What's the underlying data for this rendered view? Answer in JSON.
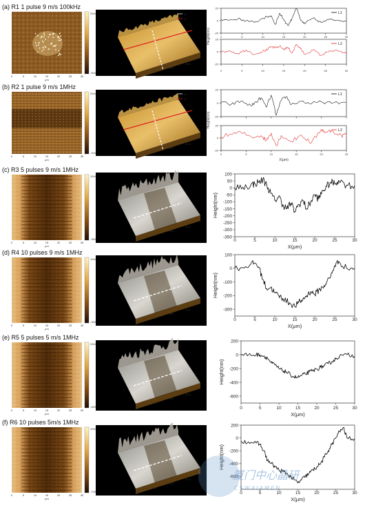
{
  "rows": [
    {
      "label": "(a)  R1  1 pulse  9 m/s 100kHz",
      "colorbar_top": "20nm",
      "colorbar_bottom": "-50nm",
      "map_style": "spotty",
      "sub_x_label": "μm"
    },
    {
      "label": "(b)  R2  1 pulse  9 m/s 1MHz",
      "colorbar_top": "20nm",
      "colorbar_bottom": "-20nm",
      "map_style": "banded",
      "sub_x_label": "μm"
    },
    {
      "label": "(c)  R3  5 pulses  9 m/s 1MHz",
      "colorbar_top": "100nm",
      "colorbar_bottom": "-350nm",
      "map_style": "track",
      "sub_x_label": "μm"
    },
    {
      "label": "(d)  R4  10 pulses  9 m/s 1MHz",
      "colorbar_top": "100nm",
      "colorbar_bottom": "-300nm",
      "map_style": "track",
      "sub_x_label": "μm"
    },
    {
      "label": "(e)  R5  5 pulses  5 m/s 1MHz",
      "colorbar_top": "200nm",
      "colorbar_bottom": "-600nm",
      "map_style": "track",
      "sub_x_label": "μm"
    },
    {
      "label": "(f)  R6  10 pulses  5m/s 1MHz",
      "colorbar_top": "200nm",
      "colorbar_bottom": "-700nm",
      "map_style": "track",
      "sub_x_label": "μm"
    }
  ],
  "map_ticks": [
    "0",
    "5",
    "10",
    "15",
    "20",
    "25",
    "30"
  ],
  "chart_data": [
    {
      "type": "line",
      "panel": "a",
      "xlabel": "",
      "ylabel": "Height(nm)",
      "xlim": [
        0,
        30
      ],
      "xticks": [
        0,
        5,
        10,
        15,
        20,
        25,
        30
      ],
      "series": [
        {
          "name": "L1",
          "color": "#000000",
          "ylim": [
            -20,
            20
          ],
          "yticks": [
            -20,
            0,
            20
          ],
          "line_rough": 4,
          "x": [
            0,
            2,
            4,
            6,
            8,
            10,
            11,
            12,
            13,
            14,
            15,
            16,
            17,
            18,
            19,
            20,
            22,
            24,
            26,
            28,
            30
          ],
          "y": [
            2,
            1,
            3,
            0,
            -3,
            4,
            6,
            8,
            -6,
            12,
            2,
            -8,
            4,
            22,
            1,
            -5,
            4,
            -3,
            2,
            1,
            0
          ]
        },
        {
          "name": "L2",
          "color": "#e02020",
          "ylim": [
            -20,
            20
          ],
          "yticks": [
            -20,
            0,
            20
          ],
          "line_rough": 4,
          "x": [
            0,
            2,
            4,
            6,
            8,
            10,
            11,
            12,
            13,
            14,
            15,
            16,
            17,
            18,
            19,
            20,
            22,
            24,
            26,
            28,
            30
          ],
          "y": [
            -1,
            2,
            -3,
            3,
            -4,
            1,
            3,
            8,
            6,
            9,
            4,
            7,
            -2,
            12,
            5,
            -4,
            3,
            -6,
            2,
            1,
            -2
          ]
        }
      ]
    },
    {
      "type": "line",
      "panel": "b",
      "xlabel": "X(μm)",
      "ylabel": "Height(nm)",
      "xlim": [
        0,
        25
      ],
      "xticks": [
        0,
        5,
        10,
        15,
        20,
        25
      ],
      "series": [
        {
          "name": "L1",
          "color": "#000000",
          "ylim": [
            -20,
            20
          ],
          "yticks": [
            -20,
            0,
            20
          ],
          "line_rough": 5,
          "x": [
            0,
            2,
            4,
            6,
            7,
            8,
            9,
            10,
            11,
            12,
            13,
            14,
            16,
            18,
            20,
            22,
            25
          ],
          "y": [
            1,
            -2,
            3,
            -4,
            2,
            8,
            -6,
            12,
            -18,
            4,
            10,
            -2,
            3,
            -1,
            2,
            0,
            1
          ]
        },
        {
          "name": "L2",
          "color": "#e02020",
          "ylim": [
            -20,
            20
          ],
          "yticks": [
            -20,
            0,
            20
          ],
          "line_rough": 7,
          "x": [
            0,
            2,
            4,
            6,
            8,
            9,
            10,
            11,
            12,
            14,
            16,
            18,
            20,
            21,
            22,
            24,
            25
          ],
          "y": [
            2,
            6,
            9,
            2,
            4,
            -4,
            8,
            -12,
            4,
            -6,
            5,
            -8,
            14,
            9,
            12,
            4,
            6
          ]
        }
      ]
    },
    {
      "type": "line",
      "panel": "c",
      "xlabel": "X(μm)",
      "ylabel": "Height(nm)",
      "xlim": [
        0,
        30
      ],
      "ylim": [
        -350,
        100
      ],
      "xticks": [
        0,
        5,
        10,
        15,
        20,
        25,
        30
      ],
      "yticks": [
        100,
        50,
        0,
        -50,
        -100,
        -150,
        -200,
        -250,
        -300,
        -350
      ],
      "series": [
        {
          "name": "",
          "color": "#000000",
          "line_rough": 55,
          "x": [
            0,
            2,
            4,
            5,
            6,
            7,
            8,
            9,
            10,
            11,
            12,
            13,
            14,
            15,
            16,
            17,
            18,
            19,
            20,
            21,
            22,
            23,
            24,
            25,
            26,
            28,
            30
          ],
          "y": [
            0,
            5,
            20,
            30,
            40,
            60,
            20,
            -40,
            -90,
            -60,
            -120,
            -150,
            -110,
            -170,
            -120,
            -90,
            -150,
            -100,
            -50,
            -80,
            -20,
            10,
            40,
            30,
            55,
            20,
            15
          ]
        }
      ]
    },
    {
      "type": "line",
      "panel": "d",
      "xlabel": "X(μm)",
      "ylabel": "Height(nm)",
      "xlim": [
        0,
        30
      ],
      "ylim": [
        -350,
        100
      ],
      "xticks": [
        0,
        5,
        10,
        15,
        20,
        25,
        30
      ],
      "yticks": [
        100,
        0,
        -100,
        -200,
        -300
      ],
      "series": [
        {
          "name": "",
          "color": "#000000",
          "line_rough": 45,
          "x": [
            0,
            2,
            4,
            5,
            6,
            7,
            8,
            9,
            10,
            11,
            12,
            13,
            14,
            15,
            16,
            17,
            18,
            19,
            20,
            21,
            22,
            23,
            24,
            25,
            26,
            28,
            30
          ],
          "y": [
            0,
            5,
            30,
            40,
            10,
            -80,
            -150,
            -140,
            -180,
            -200,
            -220,
            -240,
            -260,
            -280,
            -250,
            -230,
            -200,
            -170,
            -190,
            -160,
            -140,
            -100,
            -60,
            20,
            50,
            0,
            0
          ]
        }
      ]
    },
    {
      "type": "line",
      "panel": "e",
      "xlabel": "X(μm)",
      "ylabel": "Height(nm)",
      "xlim": [
        0,
        30
      ],
      "ylim": [
        -700,
        200
      ],
      "xticks": [
        0,
        5,
        10,
        15,
        20,
        25,
        30
      ],
      "yticks": [
        200,
        0,
        -200,
        -400,
        -600
      ],
      "series": [
        {
          "name": "",
          "color": "#000000",
          "line_rough": 60,
          "x": [
            0,
            2,
            4,
            5,
            6,
            7,
            8,
            9,
            10,
            11,
            12,
            13,
            14,
            15,
            16,
            17,
            18,
            19,
            20,
            21,
            22,
            23,
            24,
            25,
            26,
            28,
            30
          ],
          "y": [
            0,
            0,
            0,
            0,
            -20,
            -50,
            -120,
            -150,
            -200,
            -230,
            -250,
            -290,
            -320,
            -330,
            -300,
            -280,
            -250,
            -230,
            -210,
            -180,
            -160,
            -130,
            -100,
            -60,
            -20,
            0,
            -20
          ]
        }
      ]
    },
    {
      "type": "line",
      "panel": "f",
      "xlabel": "X(μm)",
      "ylabel": "Height(nm)",
      "xlim": [
        0,
        30
      ],
      "ylim": [
        -800,
        200
      ],
      "xticks": [
        0,
        5,
        10,
        15,
        20,
        25,
        30
      ],
      "yticks": [
        200,
        0,
        -200,
        -400,
        -600
      ],
      "series": [
        {
          "name": "",
          "color": "#000000",
          "line_rough": 70,
          "x": [
            0,
            2,
            4,
            5,
            6,
            7,
            8,
            9,
            10,
            11,
            12,
            13,
            14,
            15,
            16,
            17,
            18,
            19,
            20,
            21,
            22,
            23,
            24,
            25,
            26,
            27,
            28,
            30
          ],
          "y": [
            -50,
            -60,
            -80,
            -100,
            -200,
            -350,
            -400,
            -450,
            -500,
            -520,
            -550,
            -600,
            -650,
            -700,
            -650,
            -600,
            -550,
            -500,
            -450,
            -400,
            -300,
            -200,
            -100,
            0,
            100,
            160,
            0,
            -10
          ]
        }
      ]
    }
  ],
  "watermark": {
    "line1": "厦门中心晶研",
    "line2": "CSWXIAMEN"
  }
}
